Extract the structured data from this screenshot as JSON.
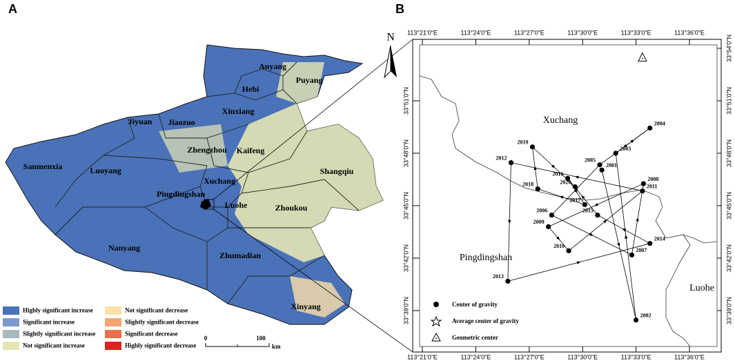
{
  "panel_a": {
    "label": "A",
    "cities": [
      "Anyang",
      "Puyang",
      "Hebi",
      "Xinxiang",
      "Jiyuan",
      "Jiaozuo",
      "Zhengzhou",
      "Kaifeng",
      "Sanmenxia",
      "Luoyang",
      "Shangqiu",
      "Xuchang",
      "Pingdingshan",
      "Luohe",
      "Zhoukou",
      "Nanyang",
      "Zhumadian",
      "Xinyang"
    ],
    "legend": [
      {
        "label": "Highly significant increase",
        "color": "#4a72b8"
      },
      {
        "label": "Significant increase",
        "color": "#7b9bcc"
      },
      {
        "label": "Slightly significant increase",
        "color": "#a9b9bd"
      },
      {
        "label": "Not significant increase",
        "color": "#e6e6b4"
      },
      {
        "label": "Not significant decrease",
        "color": "#fbe0a8"
      },
      {
        "label": "Slightly significant decrease",
        "color": "#f3a576"
      },
      {
        "label": "Significant decrease",
        "color": "#e9704a"
      },
      {
        "label": "Highly significant decrease",
        "color": "#d7261e"
      }
    ],
    "scale": {
      "ticks": [
        0,
        100
      ],
      "unit": "km"
    },
    "north": "N"
  },
  "panel_b": {
    "label": "B",
    "lon_ticks": [
      {
        "value": 113.35,
        "label": "113°21'0\"E"
      },
      {
        "value": 113.4,
        "label": "113°24'0\"E"
      },
      {
        "value": 113.45,
        "label": "113°27'0\"E"
      },
      {
        "value": 113.5,
        "label": "113°30'0\"E"
      },
      {
        "value": 113.55,
        "label": "113°33'0\"E"
      },
      {
        "value": 113.6,
        "label": "113°36'0\"E"
      }
    ],
    "lat_ticks": [
      {
        "value": 33.9,
        "label": "33°54'0\"N"
      },
      {
        "value": 33.85,
        "label": "33°51'0\"N"
      },
      {
        "value": 33.8,
        "label": "33°48'0\"N"
      },
      {
        "value": 33.75,
        "label": "33°45'0\"N"
      },
      {
        "value": 33.7,
        "label": "33°42'0\"N"
      },
      {
        "value": 33.65,
        "label": "33°39'0\"N"
      }
    ],
    "regions": [
      "Xuchang",
      "Pingdingshan",
      "Luohe"
    ],
    "centers": [
      {
        "year": "2001",
        "lon": 113.518,
        "lat": 33.784
      },
      {
        "year": "2002",
        "lon": 113.55,
        "lat": 33.641
      },
      {
        "year": "2003",
        "lon": 113.531,
        "lat": 33.8
      },
      {
        "year": "2004",
        "lon": 113.563,
        "lat": 33.824
      },
      {
        "year": "2005",
        "lon": 113.516,
        "lat": 33.789
      },
      {
        "year": "2006",
        "lon": 113.471,
        "lat": 33.741
      },
      {
        "year": "2007",
        "lon": 113.546,
        "lat": 33.703
      },
      {
        "year": "2008",
        "lon": 113.557,
        "lat": 33.771
      },
      {
        "year": "2009",
        "lon": 113.468,
        "lat": 33.73
      },
      {
        "year": "2010",
        "lon": 113.487,
        "lat": 33.707
      },
      {
        "year": "2011",
        "lon": 113.556,
        "lat": 33.764
      },
      {
        "year": "2012",
        "lon": 113.433,
        "lat": 33.791
      },
      {
        "year": "2013",
        "lon": 113.43,
        "lat": 33.678
      },
      {
        "year": "2014",
        "lon": 113.563,
        "lat": 33.714
      },
      {
        "year": "2015",
        "lon": 113.514,
        "lat": 33.741
      },
      {
        "year": "2016",
        "lon": 113.486,
        "lat": 33.776
      },
      {
        "year": "2017",
        "lon": 113.502,
        "lat": 33.751
      },
      {
        "year": "2018",
        "lon": 113.458,
        "lat": 33.766
      },
      {
        "year": "2019",
        "lon": 113.453,
        "lat": 33.806
      },
      {
        "year": "2020",
        "lon": 113.493,
        "lat": 33.768
      }
    ],
    "geometric_center": {
      "lon": 113.556,
      "lat": 33.891
    },
    "legend": [
      "Center of gravity",
      "Average center of gravity",
      "Geometric center"
    ]
  }
}
